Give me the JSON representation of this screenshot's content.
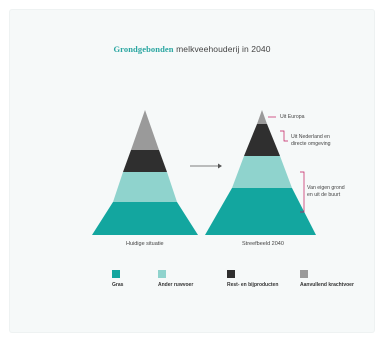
{
  "title": {
    "accent": "Grondgebonden",
    "rest": " melkveehouderij in 2040"
  },
  "pyramids": [
    {
      "caption": "Huidige situatie",
      "layers_from_top": [
        "Aanvullend krachtvoer",
        "Rest- en bijproducten",
        "Ander ruwvoer",
        "Gras"
      ],
      "layer_shares_top_to_bottom": [
        0.35,
        0.2,
        0.2,
        0.25
      ]
    },
    {
      "caption": "Streefbeeld 2040",
      "layers_from_top": [
        "Aanvullend krachtvoer",
        "Rest- en bijproducten",
        "Ander ruwvoer",
        "Gras"
      ],
      "layer_shares_top_to_bottom": [
        0.12,
        0.26,
        0.26,
        0.36
      ]
    }
  ],
  "annotations": [
    "Uit Europa",
    "Uit Nederland en directe omgeving",
    "Van eigen grond en uit de buurt"
  ],
  "legend": [
    {
      "label": "Gras",
      "color": "#13a69f"
    },
    {
      "label": "Ander ruwvoer",
      "color": "#8fd3cd"
    },
    {
      "label": "Rest- en bijproducten",
      "color": "#2f2f2f"
    },
    {
      "label": "Aanvullend krachtvoer",
      "color": "#9a9a9a"
    }
  ],
  "colors": {
    "gras": "#13a69f",
    "ander_ruwvoer": "#8fd3cd",
    "rest_bijproducten": "#2f2f2f",
    "krachtvoer": "#9a9a9a",
    "accent": "#2aa6a1",
    "bracket": "#c2185b"
  }
}
